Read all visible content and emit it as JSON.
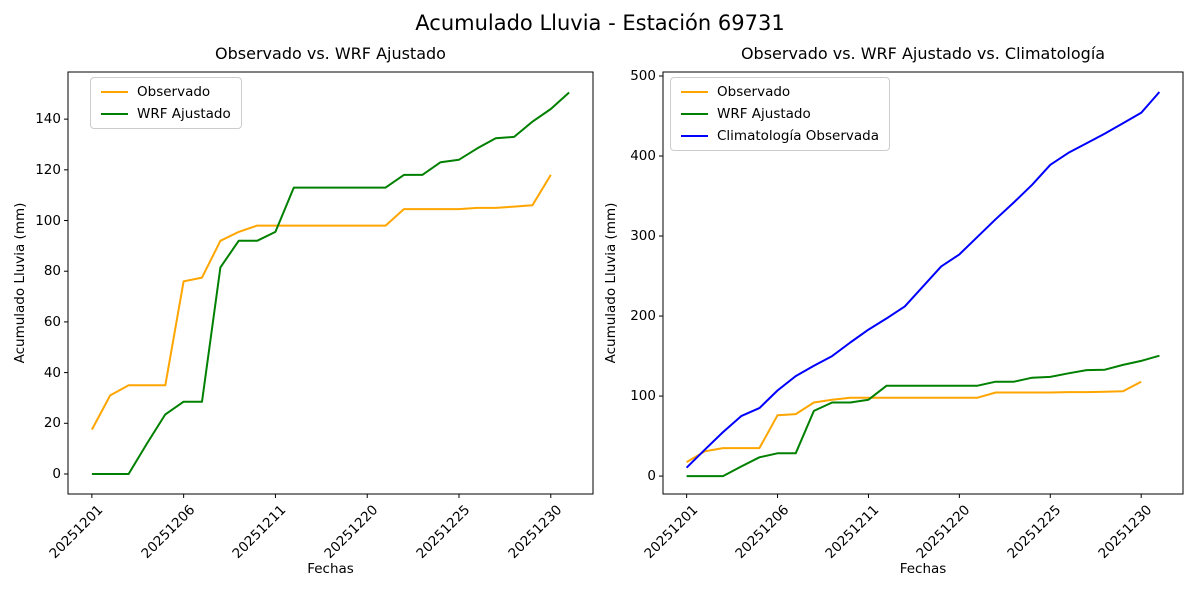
{
  "figure": {
    "suptitle": "Acumulado Lluvia - Estación 69731"
  },
  "chart_data": [
    {
      "type": "line",
      "title": "Observado vs. WRF Ajustado",
      "xlabel": "Fechas",
      "ylabel": "Acumulado Lluvia (mm)",
      "categories": [
        "20251201",
        "20251202",
        "20251203",
        "20251204",
        "20251205",
        "20251206",
        "20251207",
        "20251208",
        "20251209",
        "20251210",
        "20251211",
        "20251216",
        "20251217",
        "20251218",
        "20251219",
        "20251220",
        "20251221",
        "20251222",
        "20251223",
        "20251224",
        "20251225",
        "20251226",
        "20251227",
        "20251228",
        "20251229",
        "20251230",
        "20251231"
      ],
      "x_tick_indices": [
        0,
        5,
        10,
        15,
        20,
        25
      ],
      "x_tick_labels": [
        "20251201",
        "20251206",
        "20251211",
        "20251220",
        "20251225",
        "20251230"
      ],
      "y_ticks": [
        0,
        20,
        40,
        60,
        80,
        100,
        120,
        140
      ],
      "xlim": [
        -1.3,
        27.3
      ],
      "ylim": [
        -7.9,
        158.6
      ],
      "grid": false,
      "legend_position": "upper left",
      "series": [
        {
          "name": "Observado",
          "color": "#FFA500",
          "values": [
            17.5,
            31,
            35,
            35,
            35,
            76,
            77.5,
            92,
            95.5,
            98,
            98,
            98,
            98,
            98,
            98,
            98,
            98,
            104.5,
            104.5,
            104.5,
            104.5,
            105,
            105,
            105.5,
            106,
            118
          ]
        },
        {
          "name": "WRF Ajustado",
          "color": "#008000",
          "values": [
            0,
            0,
            0,
            12,
            23.5,
            28.5,
            28.5,
            81.5,
            92,
            92,
            95.5,
            113,
            113,
            113,
            113,
            113,
            113,
            118,
            118,
            123,
            124,
            128.5,
            132.5,
            133,
            139,
            144,
            150.5
          ]
        }
      ]
    },
    {
      "type": "line",
      "title": "Observado vs. WRF Ajustado vs. Climatología",
      "xlabel": "Fechas",
      "ylabel": "Acumulado Lluvia (mm)",
      "categories": [
        "20251201",
        "20251202",
        "20251203",
        "20251204",
        "20251205",
        "20251206",
        "20251207",
        "20251208",
        "20251209",
        "20251210",
        "20251211",
        "20251216",
        "20251217",
        "20251218",
        "20251219",
        "20251220",
        "20251221",
        "20251222",
        "20251223",
        "20251224",
        "20251225",
        "20251226",
        "20251227",
        "20251228",
        "20251229",
        "20251230",
        "20251231"
      ],
      "x_tick_indices": [
        0,
        5,
        10,
        15,
        20,
        25
      ],
      "x_tick_labels": [
        "20251201",
        "20251206",
        "20251211",
        "20251220",
        "20251225",
        "20251230"
      ],
      "y_ticks": [
        0,
        100,
        200,
        300,
        400,
        500
      ],
      "xlim": [
        -1.3,
        27.3
      ],
      "ylim": [
        -22.4,
        505
      ],
      "grid": false,
      "legend_position": "upper left",
      "series": [
        {
          "name": "Observado",
          "color": "#FFA500",
          "values": [
            17.5,
            31,
            35,
            35,
            35,
            76,
            77.5,
            92,
            95.5,
            98,
            98,
            98,
            98,
            98,
            98,
            98,
            98,
            104.5,
            104.5,
            104.5,
            104.5,
            105,
            105,
            105.5,
            106,
            118
          ]
        },
        {
          "name": "WRF Ajustado",
          "color": "#008000",
          "values": [
            0,
            0,
            0,
            12,
            23.5,
            28.5,
            28.5,
            81.5,
            92,
            92,
            95.5,
            113,
            113,
            113,
            113,
            113,
            113,
            118,
            118,
            123,
            124,
            128.5,
            132.5,
            133,
            139,
            144,
            150.5
          ]
        },
        {
          "name": "Climatología Observada",
          "color": "#0000FF",
          "values": [
            10.5,
            33,
            55,
            75,
            85,
            107,
            125,
            138,
            150,
            167,
            183,
            197,
            212,
            237,
            262,
            277,
            299,
            321,
            342,
            364,
            389,
            404,
            416,
            428,
            441,
            454,
            480
          ]
        }
      ]
    }
  ]
}
